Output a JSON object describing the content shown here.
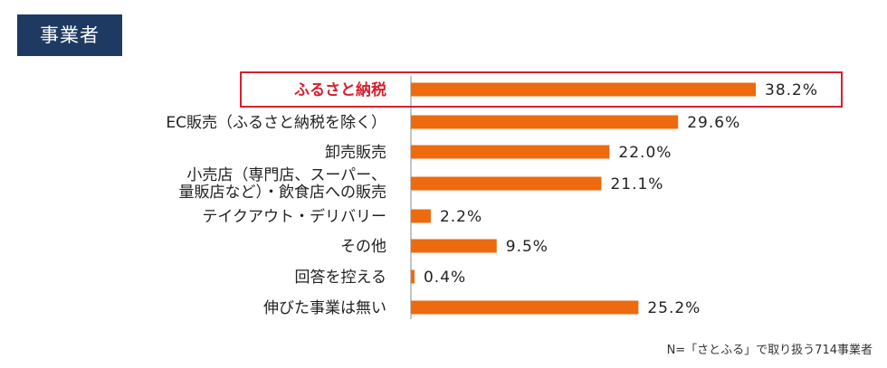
{
  "badge": "事業者",
  "footnote": "N=「さとふる」で取り扱う714事業者",
  "chart_data": {
    "type": "bar",
    "orientation": "horizontal",
    "categories": [
      [
        "ふるさと納税"
      ],
      [
        "EC販売（ふるさと納税を除く）"
      ],
      [
        "卸売販売"
      ],
      [
        "小売店（専門店、スーパー、",
        "量販店など）・飲食店への販売"
      ],
      [
        "テイクアウト・デリバリー"
      ],
      [
        "その他"
      ],
      [
        "回答を控える"
      ],
      [
        "伸びた事業は無い"
      ]
    ],
    "values": [
      38.2,
      29.6,
      22.0,
      21.1,
      2.2,
      9.5,
      0.4,
      25.2
    ],
    "value_labels": [
      "38.2%",
      "29.6%",
      "22.0%",
      "21.1%",
      "2.2%",
      "9.5%",
      "0.4%",
      "25.2%"
    ],
    "highlight_index": 0,
    "bar_color": "#ee6a0e",
    "highlight_color": "#d6202e",
    "xlim": [
      0,
      100
    ]
  }
}
